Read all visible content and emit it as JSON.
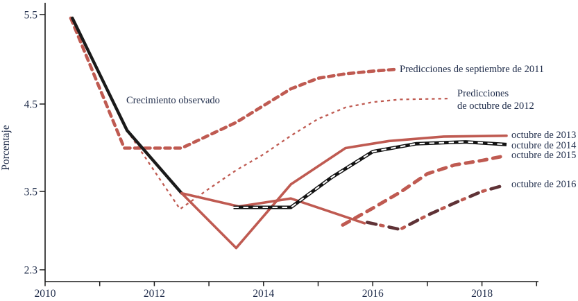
{
  "page": {
    "background": "#ffffff",
    "text_color": "#1e2b49"
  },
  "annotations": {
    "ylabel": "Porcentaje",
    "crecimiento_observado": "Crecimiento observado",
    "sep2011": "Predicciones de septiembre de 2011",
    "oct2012": "Predicciones\nde octubre de 2012",
    "oct2013": "octubre de 2013",
    "oct2014": "octubre de 2014",
    "oct2015": "octubre de 2015",
    "oct2016": "octubre de 2016"
  },
  "chart_data": {
    "type": "line",
    "title": "",
    "xlabel": "",
    "ylabel": "Porcentaje",
    "xlim": [
      2010,
      2019
    ],
    "ylim": [
      2.3,
      5.5
    ],
    "xticks": [
      "2010",
      "2012",
      "2014",
      "2016",
      "2018"
    ],
    "yticks": [
      "5.5",
      "4.5",
      "3.5",
      "2.3"
    ],
    "grid": false,
    "legend_position": "inline-end-of-line-labels",
    "colors": {
      "observado": "#1a1a1a",
      "predicciones": "#bf5a51",
      "oct2016_dark": "#5f3236",
      "texto": "#1e2b49"
    },
    "series": [
      {
        "id": "sep2011",
        "label": "Predicciones de septiembre de 2011",
        "style": "dashed-thick-red",
        "points": [
          [
            2010.47,
            5.46
          ],
          [
            2011.45,
            3.99
          ],
          [
            2012.5,
            3.99
          ],
          [
            2013.5,
            4.28
          ],
          [
            2014.5,
            4.66
          ],
          [
            2015.0,
            4.78
          ],
          [
            2015.5,
            4.83
          ],
          [
            2016.0,
            4.86
          ],
          [
            2016.4,
            4.88
          ]
        ]
      },
      {
        "id": "oct2012",
        "label": "Predicciones\nde octubre de 2012",
        "style": "dotted-thin-red",
        "points": [
          [
            2011.5,
            4.19
          ],
          [
            2012.47,
            3.3
          ],
          [
            2013.0,
            3.53
          ],
          [
            2013.5,
            3.74
          ],
          [
            2014.0,
            3.92
          ],
          [
            2014.5,
            4.13
          ],
          [
            2015.0,
            4.32
          ],
          [
            2015.5,
            4.45
          ],
          [
            2016.0,
            4.51
          ],
          [
            2016.5,
            4.54
          ],
          [
            2017.4,
            4.55
          ]
        ]
      },
      {
        "id": "observado",
        "label": "Crecimiento observado",
        "style": "solid-black",
        "points": [
          [
            2010.5,
            5.46
          ],
          [
            2011.5,
            4.19
          ],
          [
            2012.5,
            3.48
          ]
        ]
      },
      {
        "id": "oct2015",
        "label": "octubre de 2015",
        "style": "dashed-heavy-red",
        "points": [
          [
            2015.45,
            3.12
          ],
          [
            2016.0,
            3.31
          ],
          [
            2016.5,
            3.49
          ],
          [
            2017.0,
            3.7
          ],
          [
            2017.5,
            3.8
          ],
          [
            2018.0,
            3.85
          ],
          [
            2018.4,
            3.9
          ]
        ]
      },
      {
        "id": "oct2016",
        "label": "octubre de 2016",
        "style": "dash-dot-maroon-red",
        "points": [
          [
            2015.9,
            3.15
          ],
          [
            2016.5,
            3.07
          ],
          [
            2017.0,
            3.23
          ],
          [
            2017.5,
            3.37
          ],
          [
            2018.0,
            3.5
          ],
          [
            2018.35,
            3.56
          ]
        ]
      },
      {
        "id": "continuacion",
        "label": "",
        "style": "solid-red",
        "points": [
          [
            2012.5,
            3.48
          ],
          [
            2013.55,
            3.33
          ],
          [
            2014.5,
            3.42
          ],
          [
            2015.85,
            3.14
          ]
        ]
      },
      {
        "id": "oct2013",
        "label": "octubre de 2013",
        "style": "solid-red",
        "points": [
          [
            2012.5,
            3.48
          ],
          [
            2013.5,
            2.86
          ],
          [
            2014.5,
            3.58
          ],
          [
            2015.5,
            3.99
          ],
          [
            2016.3,
            4.07
          ],
          [
            2017.3,
            4.12
          ],
          [
            2018.45,
            4.13
          ]
        ]
      },
      {
        "id": "oct2014",
        "label": "octubre de 2014",
        "style": "black-with-white-dashes",
        "points": [
          [
            2013.45,
            3.32
          ],
          [
            2014.5,
            3.32
          ],
          [
            2015.25,
            3.66
          ],
          [
            2016.0,
            3.95
          ],
          [
            2016.8,
            4.04
          ],
          [
            2017.7,
            4.06
          ],
          [
            2018.45,
            4.03
          ]
        ]
      }
    ]
  }
}
